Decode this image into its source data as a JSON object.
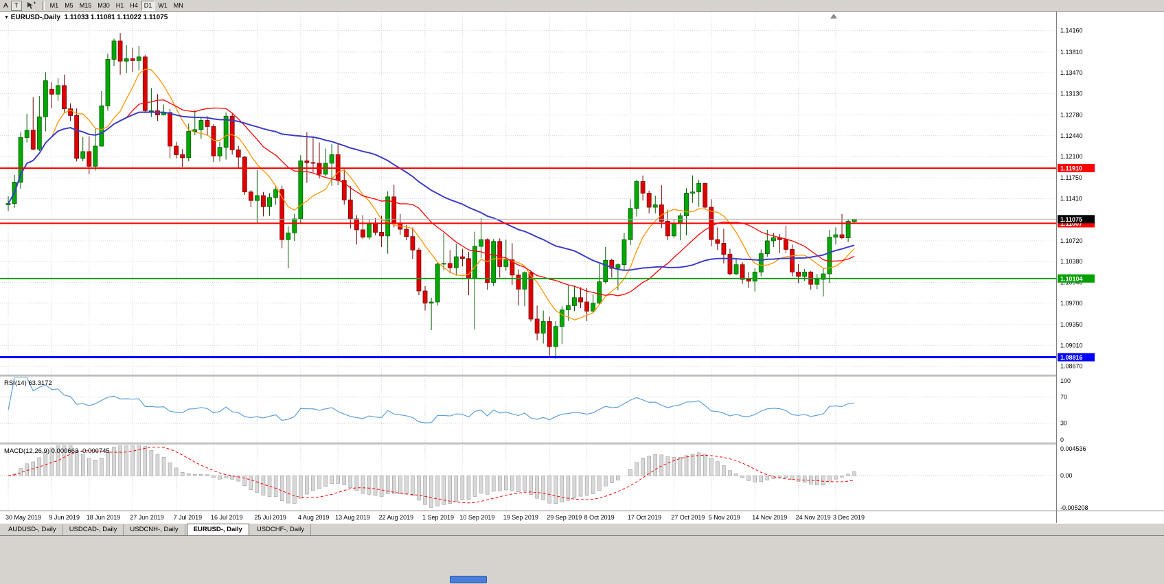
{
  "toolbar": {
    "left_label": "A",
    "text_tool": "T",
    "timeframes": [
      "M1",
      "M5",
      "M15",
      "M30",
      "H1",
      "H4",
      "D1",
      "W1",
      "MN"
    ],
    "active_timeframe": "D1"
  },
  "chart": {
    "type": "candlestick",
    "title_symbol": "EURUSD-,Daily",
    "title_ohlc": "1.11033 1.11081 1.11022 1.11075",
    "price_axis_labels": [
      "1.14160",
      "1.13810",
      "1.13470",
      "1.13130",
      "1.12780",
      "1.12440",
      "1.12100",
      "1.11750",
      "1.11410",
      "1.10720",
      "1.10380",
      "1.10040",
      "1.09700",
      "1.09350",
      "1.09010",
      "1.08670"
    ],
    "bid": {
      "label": "1.11075",
      "badge_color": "#000000"
    },
    "hlines": [
      {
        "label": "1.11910",
        "color": "#FF0000",
        "width": 2
      },
      {
        "label": "1.11007",
        "color": "#FF0000",
        "width": 2
      },
      {
        "label": "1.10104",
        "color": "#00A000",
        "width": 2
      },
      {
        "label": "1.08816",
        "color": "#0000FF",
        "width": 3
      }
    ],
    "view": {
      "price_min": 1.0853,
      "price_max": 1.1447
    },
    "date_labels": [
      {
        "label": "30 May 2019",
        "i": 0
      },
      {
        "label": "9 Jun 2019",
        "i": 7
      },
      {
        "label": "18 Jun 2019",
        "i": 13
      },
      {
        "label": "27 Jun 2019",
        "i": 20
      },
      {
        "label": "7 Jul 2019",
        "i": 27
      },
      {
        "label": "16 Jul 2019",
        "i": 33
      },
      {
        "label": "25 Jul 2019",
        "i": 40
      },
      {
        "label": "4 Aug 2019",
        "i": 47
      },
      {
        "label": "13 Aug 2019",
        "i": 53
      },
      {
        "label": "22 Aug 2019",
        "i": 60
      },
      {
        "label": "1 Sep 2019",
        "i": 67
      },
      {
        "label": "10 Sep 2019",
        "i": 73
      },
      {
        "label": "19 Sep 2019",
        "i": 80
      },
      {
        "label": "29 Sep 2019",
        "i": 87
      },
      {
        "label": "8 Oct 2019",
        "i": 93
      },
      {
        "label": "17 Oct 2019",
        "i": 100
      },
      {
        "label": "27 Oct 2019",
        "i": 107
      },
      {
        "label": "5 Nov 2019",
        "i": 113
      },
      {
        "label": "14 Nov 2019",
        "i": 120
      },
      {
        "label": "24 Nov 2019",
        "i": 127
      },
      {
        "label": "3 Dec 2019",
        "i": 133
      }
    ],
    "colors": {
      "bull_fill": "#00A800",
      "bull_stroke": "#005800",
      "bear_fill": "#E00000",
      "bear_stroke": "#700000",
      "grid": "#D6D6D6",
      "bid_line": "#ACACAC",
      "ma_fast": "#FF9500",
      "ma_mid": "#FF0000",
      "ma_slow": "#3C3CC8"
    },
    "mas": [
      {
        "period": 8,
        "color": "#FF9500",
        "width": 1.3
      },
      {
        "period": 20,
        "color": "#FF0000",
        "width": 1.3
      },
      {
        "period": 45,
        "color": "#3C3CC8",
        "width": 2
      }
    ],
    "candles": [
      [
        1.1131,
        1.1145,
        1.1121,
        1.1133
      ],
      [
        1.1133,
        1.118,
        1.1126,
        1.1168
      ],
      [
        1.1168,
        1.125,
        1.1157,
        1.1241
      ],
      [
        1.1241,
        1.128,
        1.1233,
        1.1253
      ],
      [
        1.1253,
        1.1307,
        1.122,
        1.1222
      ],
      [
        1.1222,
        1.1309,
        1.1219,
        1.1275
      ],
      [
        1.1275,
        1.1348,
        1.1251,
        1.1334
      ],
      [
        1.132,
        1.1332,
        1.1289,
        1.1312
      ],
      [
        1.1312,
        1.1338,
        1.1301,
        1.1326
      ],
      [
        1.1326,
        1.1344,
        1.1282,
        1.1288
      ],
      [
        1.1288,
        1.1297,
        1.1268,
        1.1277
      ],
      [
        1.1277,
        1.1289,
        1.1202,
        1.1207
      ],
      [
        1.1207,
        1.1242,
        1.1202,
        1.1218
      ],
      [
        1.1218,
        1.1243,
        1.1181,
        1.1194
      ],
      [
        1.1194,
        1.1255,
        1.1187,
        1.1227
      ],
      [
        1.1227,
        1.1317,
        1.1226,
        1.1293
      ],
      [
        1.1293,
        1.1378,
        1.1285,
        1.1369
      ],
      [
        1.1369,
        1.1403,
        1.1358,
        1.1399
      ],
      [
        1.1399,
        1.1412,
        1.1344,
        1.1366
      ],
      [
        1.1366,
        1.1392,
        1.1347,
        1.137
      ],
      [
        1.137,
        1.1388,
        1.1348,
        1.1367
      ],
      [
        1.1367,
        1.1391,
        1.1351,
        1.1373
      ],
      [
        1.1373,
        1.1376,
        1.1281,
        1.1285
      ],
      [
        1.1285,
        1.1322,
        1.1275,
        1.1285
      ],
      [
        1.1285,
        1.1312,
        1.1268,
        1.1278
      ],
      [
        1.1278,
        1.1295,
        1.1277,
        1.1282
      ],
      [
        1.1282,
        1.1288,
        1.1207,
        1.1227
      ],
      [
        1.1227,
        1.1234,
        1.1207,
        1.1213
      ],
      [
        1.1213,
        1.1222,
        1.1193,
        1.1208
      ],
      [
        1.1208,
        1.1264,
        1.1202,
        1.1251
      ],
      [
        1.1251,
        1.1286,
        1.1245,
        1.1254
      ],
      [
        1.1254,
        1.1275,
        1.1239,
        1.1269
      ],
      [
        1.1269,
        1.1276,
        1.1244,
        1.1259
      ],
      [
        1.1259,
        1.1263,
        1.1201,
        1.1211
      ],
      [
        1.1211,
        1.1234,
        1.1202,
        1.1225
      ],
      [
        1.1225,
        1.1282,
        1.1205,
        1.1276
      ],
      [
        1.1276,
        1.1282,
        1.1213,
        1.1221
      ],
      [
        1.1221,
        1.1227,
        1.1192,
        1.1209
      ],
      [
        1.1209,
        1.1211,
        1.1147,
        1.1152
      ],
      [
        1.1152,
        1.1155,
        1.1127,
        1.1138
      ],
      [
        1.1138,
        1.1188,
        1.1101,
        1.1146
      ],
      [
        1.1146,
        1.1152,
        1.1112,
        1.1128
      ],
      [
        1.1128,
        1.115,
        1.1113,
        1.1143
      ],
      [
        1.1143,
        1.1162,
        1.1131,
        1.1156
      ],
      [
        1.1156,
        1.1162,
        1.106,
        1.1074
      ],
      [
        1.1074,
        1.1096,
        1.1027,
        1.1085
      ],
      [
        1.1085,
        1.1116,
        1.1072,
        1.1108
      ],
      [
        1.1108,
        1.1212,
        1.1101,
        1.1203
      ],
      [
        1.1203,
        1.125,
        1.1167,
        1.12
      ],
      [
        1.12,
        1.1243,
        1.1184,
        1.1199
      ],
      [
        1.1199,
        1.1233,
        1.1174,
        1.1181
      ],
      [
        1.1181,
        1.1223,
        1.1178,
        1.1199
      ],
      [
        1.1199,
        1.123,
        1.1162,
        1.1213
      ],
      [
        1.1213,
        1.123,
        1.1163,
        1.1171
      ],
      [
        1.1171,
        1.1192,
        1.1131,
        1.1139
      ],
      [
        1.1139,
        1.1162,
        1.1092,
        1.1108
      ],
      [
        1.1108,
        1.1114,
        1.1066,
        1.109
      ],
      [
        1.109,
        1.1114,
        1.1075,
        1.1078
      ],
      [
        1.1078,
        1.1107,
        1.1074,
        1.11
      ],
      [
        1.11,
        1.1109,
        1.1081,
        1.1086
      ],
      [
        1.1086,
        1.1113,
        1.1062,
        1.108
      ],
      [
        1.108,
        1.1153,
        1.1051,
        1.1144
      ],
      [
        1.1144,
        1.1164,
        1.1094,
        1.1101
      ],
      [
        1.1101,
        1.1116,
        1.1082,
        1.1091
      ],
      [
        1.1091,
        1.1098,
        1.1073,
        1.1079
      ],
      [
        1.1079,
        1.1094,
        1.1042,
        1.1057
      ],
      [
        1.1057,
        1.1061,
        1.0983,
        1.099
      ],
      [
        1.099,
        1.0998,
        1.0958,
        1.097
      ],
      [
        1.097,
        1.0979,
        1.0926,
        1.0972
      ],
      [
        1.0972,
        1.1037,
        1.0966,
        1.1034
      ],
      [
        1.1034,
        1.1085,
        1.1024,
        1.1035
      ],
      [
        1.1035,
        1.1057,
        1.1019,
        1.1028
      ],
      [
        1.1028,
        1.1067,
        1.1015,
        1.1046
      ],
      [
        1.1046,
        1.1059,
        1.103,
        1.1043
      ],
      [
        1.1043,
        1.1054,
        1.0983,
        1.1011
      ],
      [
        1.1011,
        1.1087,
        1.0927,
        1.1063
      ],
      [
        1.1063,
        1.1109,
        1.1044,
        1.1074
      ],
      [
        1.1074,
        1.1076,
        1.0992,
        1.1004
      ],
      [
        1.1004,
        1.1075,
        1.0998,
        1.1071
      ],
      [
        1.1071,
        1.1076,
        1.1012,
        1.103
      ],
      [
        1.103,
        1.1074,
        1.1023,
        1.1041
      ],
      [
        1.1041,
        1.1068,
        1.1,
        1.1016
      ],
      [
        1.1016,
        1.1025,
        1.0966,
        1.0993
      ],
      [
        1.0993,
        1.1022,
        1.0965,
        1.102
      ],
      [
        1.102,
        1.1024,
        1.094,
        1.0944
      ],
      [
        1.0944,
        1.0966,
        1.0909,
        1.0921
      ],
      [
        1.0921,
        1.0958,
        1.0904,
        1.094
      ],
      [
        1.094,
        1.0948,
        1.0884,
        1.0899
      ],
      [
        1.0899,
        1.0941,
        1.0879,
        1.0932
      ],
      [
        1.0932,
        1.0965,
        1.0903,
        1.0959
      ],
      [
        1.0959,
        1.0999,
        1.0941,
        1.0966
      ],
      [
        1.0966,
        1.0999,
        1.0957,
        1.0979
      ],
      [
        1.0979,
        1.0996,
        1.0962,
        1.0972
      ],
      [
        1.0972,
        1.0995,
        1.0941,
        1.0957
      ],
      [
        1.0957,
        1.0985,
        1.0955,
        1.097
      ],
      [
        1.097,
        1.1034,
        1.0967,
        1.1005
      ],
      [
        1.1005,
        1.1062,
        1.1002,
        1.104
      ],
      [
        1.104,
        1.1043,
        1.1012,
        1.1027
      ],
      [
        1.1027,
        1.1035,
        1.0991,
        1.1033
      ],
      [
        1.1033,
        1.1085,
        1.1023,
        1.1074
      ],
      [
        1.1074,
        1.114,
        1.1065,
        1.1125
      ],
      [
        1.1125,
        1.1172,
        1.1112,
        1.1169
      ],
      [
        1.1169,
        1.1179,
        1.1138,
        1.115
      ],
      [
        1.115,
        1.1154,
        1.1117,
        1.1127
      ],
      [
        1.1127,
        1.1146,
        1.1117,
        1.1131
      ],
      [
        1.1131,
        1.1163,
        1.1093,
        1.1104
      ],
      [
        1.1104,
        1.1123,
        1.1073,
        1.108
      ],
      [
        1.108,
        1.1107,
        1.1077,
        1.11
      ],
      [
        1.11,
        1.1118,
        1.1073,
        1.1113
      ],
      [
        1.1113,
        1.1158,
        1.1081,
        1.115
      ],
      [
        1.115,
        1.1179,
        1.1134,
        1.1152
      ],
      [
        1.1152,
        1.1172,
        1.1128,
        1.1166
      ],
      [
        1.1166,
        1.1167,
        1.1125,
        1.1127
      ],
      [
        1.1127,
        1.114,
        1.1063,
        1.1074
      ],
      [
        1.1074,
        1.1094,
        1.1057,
        1.1068
      ],
      [
        1.1068,
        1.1092,
        1.1035,
        1.105
      ],
      [
        1.105,
        1.1059,
        1.1016,
        1.1018
      ],
      [
        1.1018,
        1.1042,
        1.1016,
        1.1033
      ],
      [
        1.1033,
        1.1037,
        1.1002,
        1.1009
      ],
      [
        1.1009,
        1.1021,
        1.0995,
        1.1006
      ],
      [
        1.1006,
        1.1027,
        1.0989,
        1.1021
      ],
      [
        1.1021,
        1.1058,
        1.1014,
        1.1051
      ],
      [
        1.1051,
        1.109,
        1.1046,
        1.1072
      ],
      [
        1.1072,
        1.1085,
        1.1062,
        1.1077
      ],
      [
        1.1077,
        1.1083,
        1.1052,
        1.1074
      ],
      [
        1.1074,
        1.1097,
        1.1052,
        1.1058
      ],
      [
        1.1058,
        1.1066,
        1.1014,
        1.1021
      ],
      [
        1.1021,
        1.1034,
        1.1003,
        1.1014
      ],
      [
        1.1014,
        1.1026,
        1.1006,
        1.1021
      ],
      [
        1.1021,
        1.1023,
        1.0992,
        1.1001
      ],
      [
        1.1001,
        1.1018,
        1.0993,
        1.1009
      ],
      [
        1.1009,
        1.1028,
        1.0981,
        1.1018
      ],
      [
        1.1018,
        1.109,
        1.1003,
        1.1078
      ],
      [
        1.1078,
        1.1094,
        1.1066,
        1.1082
      ],
      [
        1.1082,
        1.1116,
        1.1075,
        1.1077
      ],
      [
        1.1077,
        1.1108,
        1.107,
        1.1104
      ],
      [
        1.11033,
        1.11081,
        1.11022,
        1.11075
      ]
    ]
  },
  "rsi": {
    "label": "RSI(14) 63.3172",
    "period": 14,
    "levels": [
      100,
      70,
      30,
      0
    ],
    "level_lines": [
      70,
      30
    ],
    "color": "#5E9FD8"
  },
  "macd": {
    "label": "MACD(12,26,9) 0.000663 -0.000745",
    "fast": 12,
    "slow": 26,
    "signal": 9,
    "axis_labels": [
      "0.004536",
      "0.00",
      "-0.005208"
    ],
    "hist_fill": "#D8D8D8",
    "hist_stroke": "#8C8C8C",
    "signal_color": "#FF0000"
  },
  "tabs": [
    {
      "label": "AUDUSD-, Daily",
      "active": false
    },
    {
      "label": "USDCAD-, Daily",
      "active": false
    },
    {
      "label": "USDCNH-, Daily",
      "active": false
    },
    {
      "label": "EURUSD-, Daily",
      "active": true
    },
    {
      "label": "USDCHF-, Daily",
      "active": false
    }
  ]
}
